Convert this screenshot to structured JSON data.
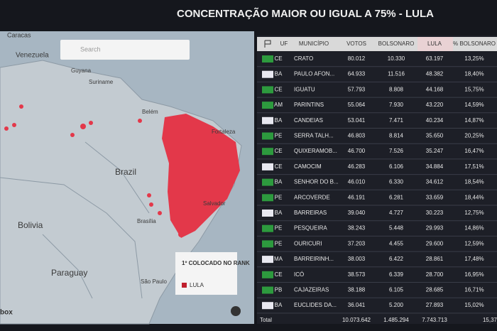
{
  "header": {
    "title": "CONCENTRAÇÃO MAIOR OU IGUAL A 75% - LULA"
  },
  "map": {
    "search": "Search",
    "labels": [
      "Caracas",
      "Venezuela",
      "Guyana",
      "Suriname",
      "Belém",
      "Fortaleza",
      "Brazil",
      "Salvador",
      "Bolivia",
      "Brasília",
      "Paraguay",
      "São Paulo"
    ],
    "legend": {
      "title": "1º COLOCADO NO RANK",
      "item": "LULA"
    },
    "attribution": "box"
  },
  "table": {
    "columns": [
      "UF",
      "MUNICÍPIO",
      "VOTOS",
      "BOLSONARO",
      "LULA",
      "% BOLSONARO"
    ],
    "rows": [
      [
        "CE",
        "CRATO",
        "80.012",
        "10.330",
        "63.197",
        "13,25%"
      ],
      [
        "BA",
        "PAULO AFON...",
        "64.933",
        "11.516",
        "48.382",
        "18,40%"
      ],
      [
        "CE",
        "IGUATU",
        "57.793",
        "8.808",
        "44.168",
        "15,75%"
      ],
      [
        "AM",
        "PARINTINS",
        "55.064",
        "7.930",
        "43.220",
        "14,59%"
      ],
      [
        "BA",
        "CANDEIAS",
        "53.041",
        "7.471",
        "40.234",
        "14,87%"
      ],
      [
        "PE",
        "SERRA TALH...",
        "46.803",
        "8.814",
        "35.650",
        "20,25%"
      ],
      [
        "CE",
        "QUIXERAMOB...",
        "46.700",
        "7.526",
        "35.247",
        "16,47%"
      ],
      [
        "CE",
        "CAMOCIM",
        "46.283",
        "6.106",
        "34.884",
        "17,51%"
      ],
      [
        "BA",
        "SENHOR DO B...",
        "46.010",
        "6.330",
        "34.612",
        "18,54%"
      ],
      [
        "PE",
        "ARCOVERDE",
        "46.191",
        "6.281",
        "33.659",
        "18,44%"
      ],
      [
        "BA",
        "BARREIRAS",
        "39.040",
        "4.727",
        "30.223",
        "12,75%"
      ],
      [
        "PE",
        "PESQUEIRA",
        "38.243",
        "5.448",
        "29.993",
        "14,86%"
      ],
      [
        "PE",
        "OURICURI",
        "37.203",
        "4.455",
        "29.600",
        "12,59%"
      ],
      [
        "MA",
        "BARREIRINH...",
        "38.003",
        "6.422",
        "28.861",
        "17,48%"
      ],
      [
        "CE",
        "ICÓ",
        "38.573",
        "6.339",
        "28.700",
        "16,95%"
      ],
      [
        "PB",
        "CAJAZEIRAS",
        "38.188",
        "6.105",
        "28.685",
        "16,71%"
      ],
      [
        "BA",
        "EUCLIDES DA...",
        "36.041",
        "5.200",
        "27.893",
        "15,02%"
      ]
    ],
    "total": [
      "Total",
      "10.073.642",
      "1.485.294",
      "7.743.713",
      "15,37"
    ]
  }
}
